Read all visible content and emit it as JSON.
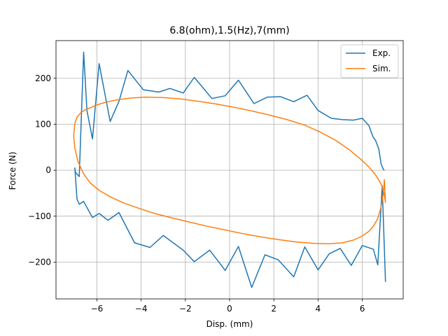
{
  "chart_data": {
    "type": "line",
    "title": "6.8(ohm),1.5(Hz),7(mm)",
    "xlabel": "Disp. (mm)",
    "ylabel": "Force (N)",
    "xlim": [
      -7.85,
      7.85
    ],
    "ylim": [
      -280,
      282
    ],
    "xticks": [
      -6,
      -4,
      -2,
      0,
      2,
      4,
      6
    ],
    "xtick_labels": [
      "−6",
      "−4",
      "−2",
      "0",
      "2",
      "4",
      "6"
    ],
    "yticks": [
      -200,
      -100,
      0,
      100,
      200
    ],
    "ytick_labels": [
      "−200",
      "−100",
      "0",
      "100",
      "200"
    ],
    "grid": true,
    "legend": "top-right",
    "colors": {
      "exp": "#1f77b4",
      "sim": "#ff7f0e"
    },
    "series": [
      {
        "name": "Exp.",
        "x": [
          7.0,
          6.95,
          6.85,
          6.75,
          6.6,
          6.5,
          6.45,
          6.3,
          6.0,
          5.6,
          5.1,
          4.6,
          4.0,
          3.5,
          2.9,
          2.3,
          1.7,
          1.1,
          0.4,
          -0.2,
          -0.8,
          -1.6,
          -2.1,
          -2.7,
          -3.2,
          -3.9,
          -4.6,
          -5.0,
          -5.4,
          -5.9,
          -6.2,
          -6.45,
          -6.6,
          -6.8,
          -6.97,
          -7.0,
          -6.9,
          -6.8,
          -6.6,
          -6.2,
          -5.9,
          -5.5,
          -5.0,
          -4.3,
          -3.6,
          -3.0,
          -2.1,
          -1.6,
          -0.9,
          -0.2,
          0.4,
          1.0,
          1.6,
          2.2,
          2.9,
          3.4,
          4.0,
          4.5,
          5.0,
          5.5,
          6.0,
          6.5,
          6.7,
          6.9,
          7.05
        ],
        "y": [
          0,
          2,
          14,
          46,
          65,
          71,
          77,
          97,
          113,
          109,
          110,
          113,
          130,
          163,
          149,
          160,
          159,
          145,
          196,
          162,
          156,
          202,
          168,
          178,
          170,
          175,
          217,
          150,
          106,
          232,
          68,
          130,
          257,
          -14,
          -5,
          5,
          -63,
          -74,
          -68,
          -103,
          -94,
          -109,
          -92,
          -158,
          -168,
          -142,
          -174,
          -199,
          -174,
          -218,
          -166,
          -255,
          -184,
          -195,
          -232,
          -167,
          -217,
          -182,
          -170,
          -207,
          -164,
          -172,
          -206,
          -34,
          -243
        ]
      },
      {
        "name": "Sim.",
        "x": [
          7.0,
          6.95,
          6.85,
          6.7,
          6.5,
          6.3,
          6.0,
          5.6,
          5.1,
          4.5,
          3.8,
          3.0,
          2.2,
          1.4,
          0.6,
          -0.2,
          -1.0,
          -1.8,
          -2.6,
          -3.4,
          -4.1,
          -4.8,
          -5.4,
          -5.9,
          -6.3,
          -6.6,
          -6.85,
          -7.0,
          -7.05,
          -7.0,
          -6.9,
          -6.75,
          -6.55,
          -6.3,
          -6.0,
          -5.6,
          -5.1,
          -4.5,
          -3.8,
          -3.0,
          -2.2,
          -1.4,
          -0.6,
          0.2,
          1.0,
          1.8,
          2.6,
          3.4,
          4.1,
          4.8,
          5.4,
          5.9,
          6.3,
          6.6,
          6.85,
          6.98,
          7.05,
          7.0
        ],
        "y": [
          -20,
          -50,
          -80,
          -105,
          -122,
          -133,
          -143,
          -152,
          -158,
          -160,
          -159,
          -156,
          -151,
          -145,
          -138,
          -130,
          -122,
          -113,
          -104,
          -94,
          -83,
          -71,
          -58,
          -44,
          -28,
          -8,
          18,
          48,
          75,
          102,
          115,
          124,
          131,
          136,
          142,
          148,
          153,
          157,
          159,
          158,
          155,
          150,
          144,
          137,
          129,
          120,
          110,
          98,
          83,
          65,
          45,
          25,
          7,
          -10,
          -30,
          -50,
          -70,
          -20
        ]
      }
    ]
  }
}
